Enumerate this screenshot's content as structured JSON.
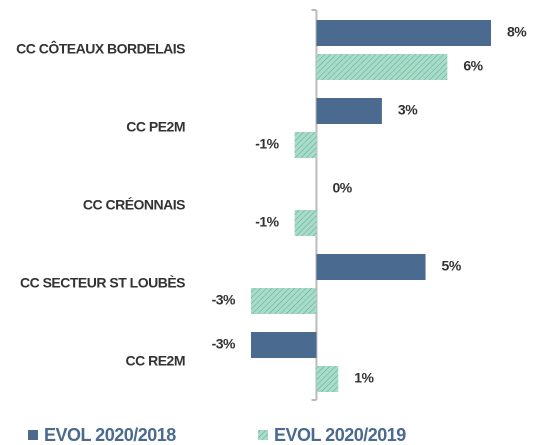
{
  "chart_data": {
    "type": "hbar",
    "categories": [
      "CC CÔTEAUX BORDELAIS",
      "CC PE2M",
      "CC CRÉONNAIS",
      "CC SECTEUR ST LOUBÈS",
      "CC RE2M"
    ],
    "series": [
      {
        "name": "EVOL 2020/2018",
        "color": "#4a6b8f",
        "pattern": "solid",
        "values": [
          8,
          3,
          0,
          5,
          -3
        ],
        "value_labels": [
          "8%",
          "3%",
          "0%",
          "5%",
          "-3%"
        ]
      },
      {
        "name": "EVOL 2020/2019",
        "color": "#a6dcc9",
        "pattern": "hatched",
        "values": [
          6,
          -1,
          -1,
          -3,
          1
        ],
        "value_labels": [
          "6%",
          "-1%",
          "-1%",
          "-3%",
          "1%"
        ]
      }
    ],
    "legend": "bottom"
  }
}
